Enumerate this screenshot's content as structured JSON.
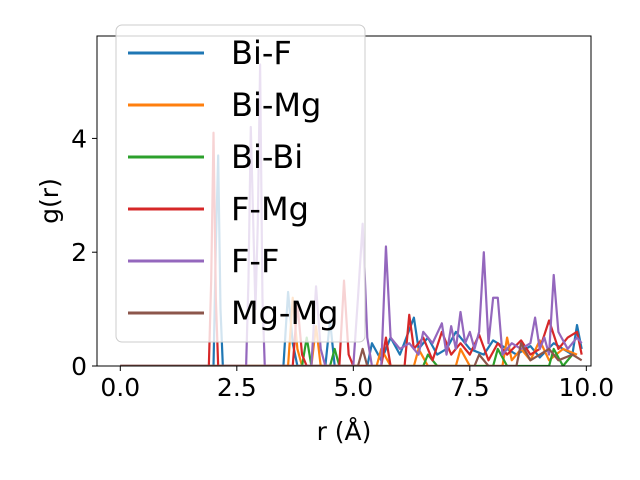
{
  "chart_data": {
    "type": "line",
    "title": "",
    "xlabel": "r (Å)",
    "ylabel": "g(r)",
    "xlim": [
      -0.5,
      10.1
    ],
    "ylim": [
      0,
      5.8
    ],
    "xticks": [
      0.0,
      2.5,
      5.0,
      7.5,
      10.0
    ],
    "xtick_labels": [
      "0.0",
      "2.5",
      "5.0",
      "7.5",
      "10.0"
    ],
    "yticks": [
      0,
      2,
      4
    ],
    "ytick_labels": [
      "0",
      "2",
      "4"
    ],
    "grid": false,
    "legend": "upper-left",
    "series": [
      {
        "name": "Bi-F",
        "color": "#1f77b4",
        "points": [
          [
            0,
            0
          ],
          [
            2.0,
            0
          ],
          [
            2.05,
            2.1
          ],
          [
            2.1,
            3.7
          ],
          [
            2.15,
            1.0
          ],
          [
            2.2,
            0
          ],
          [
            3.5,
            0
          ],
          [
            3.6,
            1.3
          ],
          [
            3.7,
            0.4
          ],
          [
            3.8,
            0
          ],
          [
            4.4,
            0
          ],
          [
            4.5,
            0.8
          ],
          [
            4.6,
            0
          ],
          [
            5.3,
            0
          ],
          [
            5.4,
            0.4
          ],
          [
            5.6,
            0.1
          ],
          [
            5.8,
            0.5
          ],
          [
            6.0,
            0.2
          ],
          [
            6.3,
            0.85
          ],
          [
            6.4,
            0.3
          ],
          [
            6.6,
            0.5
          ],
          [
            6.8,
            0.2
          ],
          [
            7.0,
            0.3
          ],
          [
            7.2,
            0.6
          ],
          [
            7.5,
            0.3
          ],
          [
            7.8,
            0.2
          ],
          [
            8.0,
            0.45
          ],
          [
            8.3,
            0.3
          ],
          [
            8.5,
            0.2
          ],
          [
            8.8,
            0.35
          ],
          [
            9.0,
            0.15
          ],
          [
            9.3,
            0.4
          ],
          [
            9.5,
            0.3
          ],
          [
            9.7,
            0.2
          ],
          [
            9.8,
            0.72
          ],
          [
            9.9,
            0.3
          ]
        ]
      },
      {
        "name": "Bi-Mg",
        "color": "#ff7f0e",
        "points": [
          [
            0,
            0
          ],
          [
            3.6,
            0
          ],
          [
            3.7,
            1.2
          ],
          [
            3.8,
            0.3
          ],
          [
            3.9,
            0
          ],
          [
            4.1,
            0
          ],
          [
            4.2,
            0.7
          ],
          [
            4.3,
            0
          ],
          [
            5.5,
            0
          ],
          [
            5.6,
            0.3
          ],
          [
            5.8,
            0
          ],
          [
            6.3,
            0
          ],
          [
            6.4,
            0.3
          ],
          [
            6.6,
            0
          ],
          [
            7.2,
            0
          ],
          [
            7.3,
            0.3
          ],
          [
            7.5,
            0
          ],
          [
            8.2,
            0
          ],
          [
            8.3,
            0.5
          ],
          [
            8.4,
            0.1
          ],
          [
            8.6,
            0.3
          ],
          [
            8.8,
            0.1
          ],
          [
            9.0,
            0.45
          ],
          [
            9.2,
            0.1
          ],
          [
            9.5,
            0.3
          ],
          [
            9.8,
            0.2
          ]
        ]
      },
      {
        "name": "Bi-Bi",
        "color": "#2ca02c",
        "points": [
          [
            0,
            0
          ],
          [
            3.9,
            0
          ],
          [
            4.0,
            0.5
          ],
          [
            4.1,
            0
          ],
          [
            4.5,
            0
          ],
          [
            4.6,
            0.3
          ],
          [
            4.7,
            0
          ],
          [
            6.5,
            0
          ],
          [
            6.6,
            0.2
          ],
          [
            6.8,
            0
          ],
          [
            8.0,
            0
          ],
          [
            8.1,
            0.3
          ],
          [
            8.3,
            0
          ],
          [
            9.2,
            0
          ],
          [
            9.3,
            0.3
          ],
          [
            9.5,
            0
          ],
          [
            9.7,
            0.2
          ]
        ]
      },
      {
        "name": "F-Mg",
        "color": "#d62728",
        "points": [
          [
            0,
            0
          ],
          [
            1.9,
            0
          ],
          [
            1.95,
            1.5
          ],
          [
            2.0,
            4.1
          ],
          [
            2.05,
            1.2
          ],
          [
            2.1,
            0
          ],
          [
            3.7,
            0
          ],
          [
            3.8,
            1.1
          ],
          [
            3.9,
            0.2
          ],
          [
            4.0,
            0
          ],
          [
            4.7,
            0
          ],
          [
            4.8,
            1.5
          ],
          [
            4.9,
            0.2
          ],
          [
            5.0,
            0
          ],
          [
            5.6,
            0
          ],
          [
            5.7,
            0.5
          ],
          [
            5.8,
            0
          ],
          [
            6.1,
            0
          ],
          [
            6.2,
            0.9
          ],
          [
            6.3,
            0.3
          ],
          [
            6.5,
            0.5
          ],
          [
            6.7,
            0.1
          ],
          [
            6.9,
            0.6
          ],
          [
            7.1,
            0.2
          ],
          [
            7.3,
            0.4
          ],
          [
            7.5,
            0.2
          ],
          [
            7.7,
            0.55
          ],
          [
            7.9,
            0.1
          ],
          [
            8.1,
            0.4
          ],
          [
            8.3,
            0.2
          ],
          [
            8.6,
            0.45
          ],
          [
            8.8,
            0.2
          ],
          [
            9.0,
            0.3
          ],
          [
            9.2,
            0.8
          ],
          [
            9.4,
            0.3
          ],
          [
            9.6,
            0.5
          ],
          [
            9.8,
            0.6
          ],
          [
            9.9,
            0.2
          ]
        ]
      },
      {
        "name": "F-F",
        "color": "#9467bd",
        "points": [
          [
            0,
            0
          ],
          [
            2.7,
            0
          ],
          [
            2.75,
            1.5
          ],
          [
            2.8,
            4.2
          ],
          [
            2.9,
            1.0
          ],
          [
            2.95,
            2.5
          ],
          [
            3.0,
            5.3
          ],
          [
            3.05,
            1.2
          ],
          [
            3.1,
            0
          ],
          [
            4.1,
            0
          ],
          [
            4.2,
            1.4
          ],
          [
            4.3,
            0.3
          ],
          [
            4.4,
            0
          ],
          [
            5.0,
            0
          ],
          [
            5.1,
            1.2
          ],
          [
            5.2,
            2.5
          ],
          [
            5.3,
            0.5
          ],
          [
            5.4,
            0
          ],
          [
            5.6,
            0
          ],
          [
            5.7,
            2.1
          ],
          [
            5.8,
            0.5
          ],
          [
            6.0,
            0.3
          ],
          [
            6.2,
            0.4
          ],
          [
            6.4,
            0.2
          ],
          [
            6.5,
            0.6
          ],
          [
            6.7,
            0.4
          ],
          [
            6.9,
            0.75
          ],
          [
            7.0,
            0.2
          ],
          [
            7.1,
            0.7
          ],
          [
            7.2,
            0.3
          ],
          [
            7.3,
            0.95
          ],
          [
            7.4,
            0.4
          ],
          [
            7.5,
            0.6
          ],
          [
            7.6,
            0.3
          ],
          [
            7.7,
            0.6
          ],
          [
            7.8,
            2.0
          ],
          [
            7.9,
            0.4
          ],
          [
            8.0,
            1.2
          ],
          [
            8.1,
            1.2
          ],
          [
            8.2,
            0.2
          ],
          [
            8.4,
            0.4
          ],
          [
            8.6,
            0.3
          ],
          [
            8.8,
            0.4
          ],
          [
            8.9,
            0.85
          ],
          [
            9.0,
            0.3
          ],
          [
            9.1,
            0.5
          ],
          [
            9.2,
            0.2
          ],
          [
            9.3,
            1.6
          ],
          [
            9.4,
            0.6
          ],
          [
            9.6,
            0.3
          ],
          [
            9.8,
            0.5
          ],
          [
            9.9,
            0.4
          ]
        ]
      },
      {
        "name": "Mg-Mg",
        "color": "#8c564b",
        "points": [
          [
            0,
            0
          ],
          [
            5.1,
            0
          ],
          [
            5.2,
            0.3
          ],
          [
            5.3,
            0
          ],
          [
            7.6,
            0
          ],
          [
            7.7,
            0.2
          ],
          [
            7.9,
            0
          ],
          [
            8.5,
            0
          ],
          [
            8.6,
            0.4
          ],
          [
            8.8,
            0.1
          ],
          [
            9.2,
            0.3
          ],
          [
            9.4,
            0.1
          ],
          [
            9.7,
            0.2
          ],
          [
            9.9,
            0.1
          ]
        ]
      }
    ]
  }
}
